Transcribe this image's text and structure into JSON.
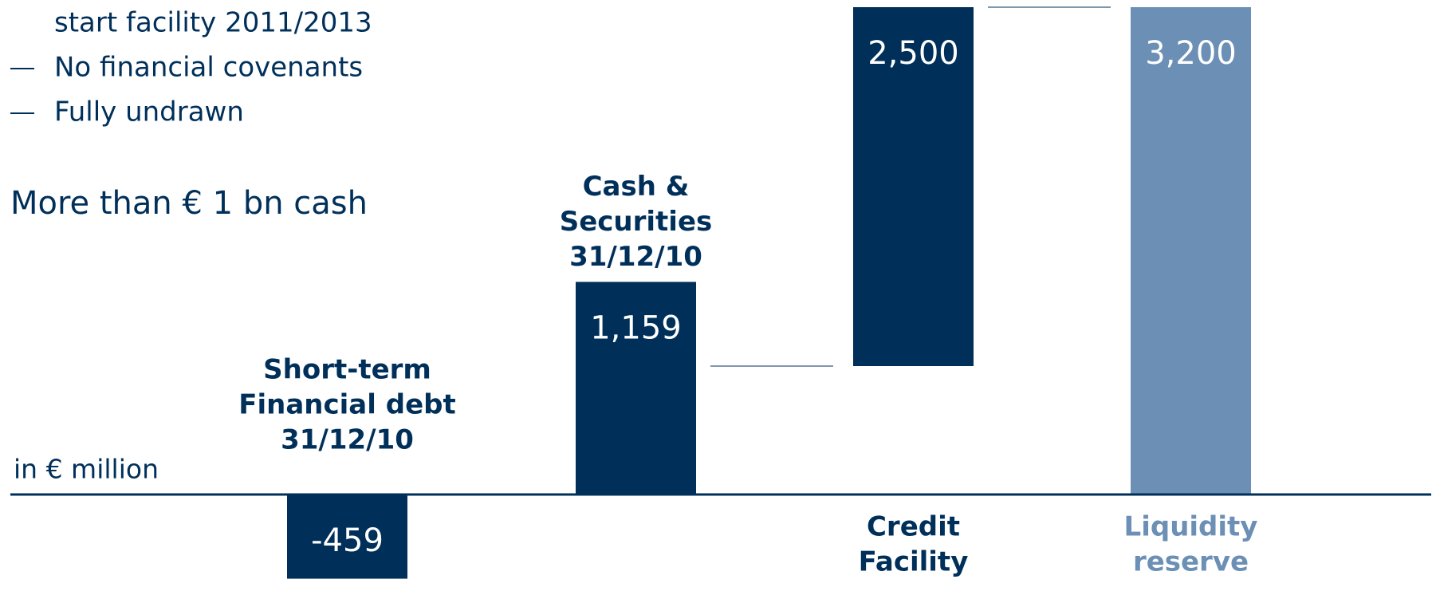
{
  "notes": [
    "start facility 2011/2013",
    "No financial covenants",
    "Fully undrawn"
  ],
  "heading": "More than € 1 bn cash",
  "chart_data": {
    "type": "waterfall",
    "unit_label": "in € million",
    "categories": [
      [
        "Short-term",
        "Financial debt",
        "31/12/10"
      ],
      [
        "Cash &",
        "Securities",
        "31/12/10"
      ],
      [
        "Credit",
        "Facility"
      ],
      [
        "Liquidity",
        "reserve"
      ]
    ],
    "values": [
      -459,
      1159,
      2500,
      3200
    ],
    "value_labels": [
      "-459",
      "1,159",
      "2,500",
      "3,200"
    ],
    "colors": [
      "#00305a",
      "#00305a",
      "#00305a",
      "#6b8fb5"
    ]
  }
}
